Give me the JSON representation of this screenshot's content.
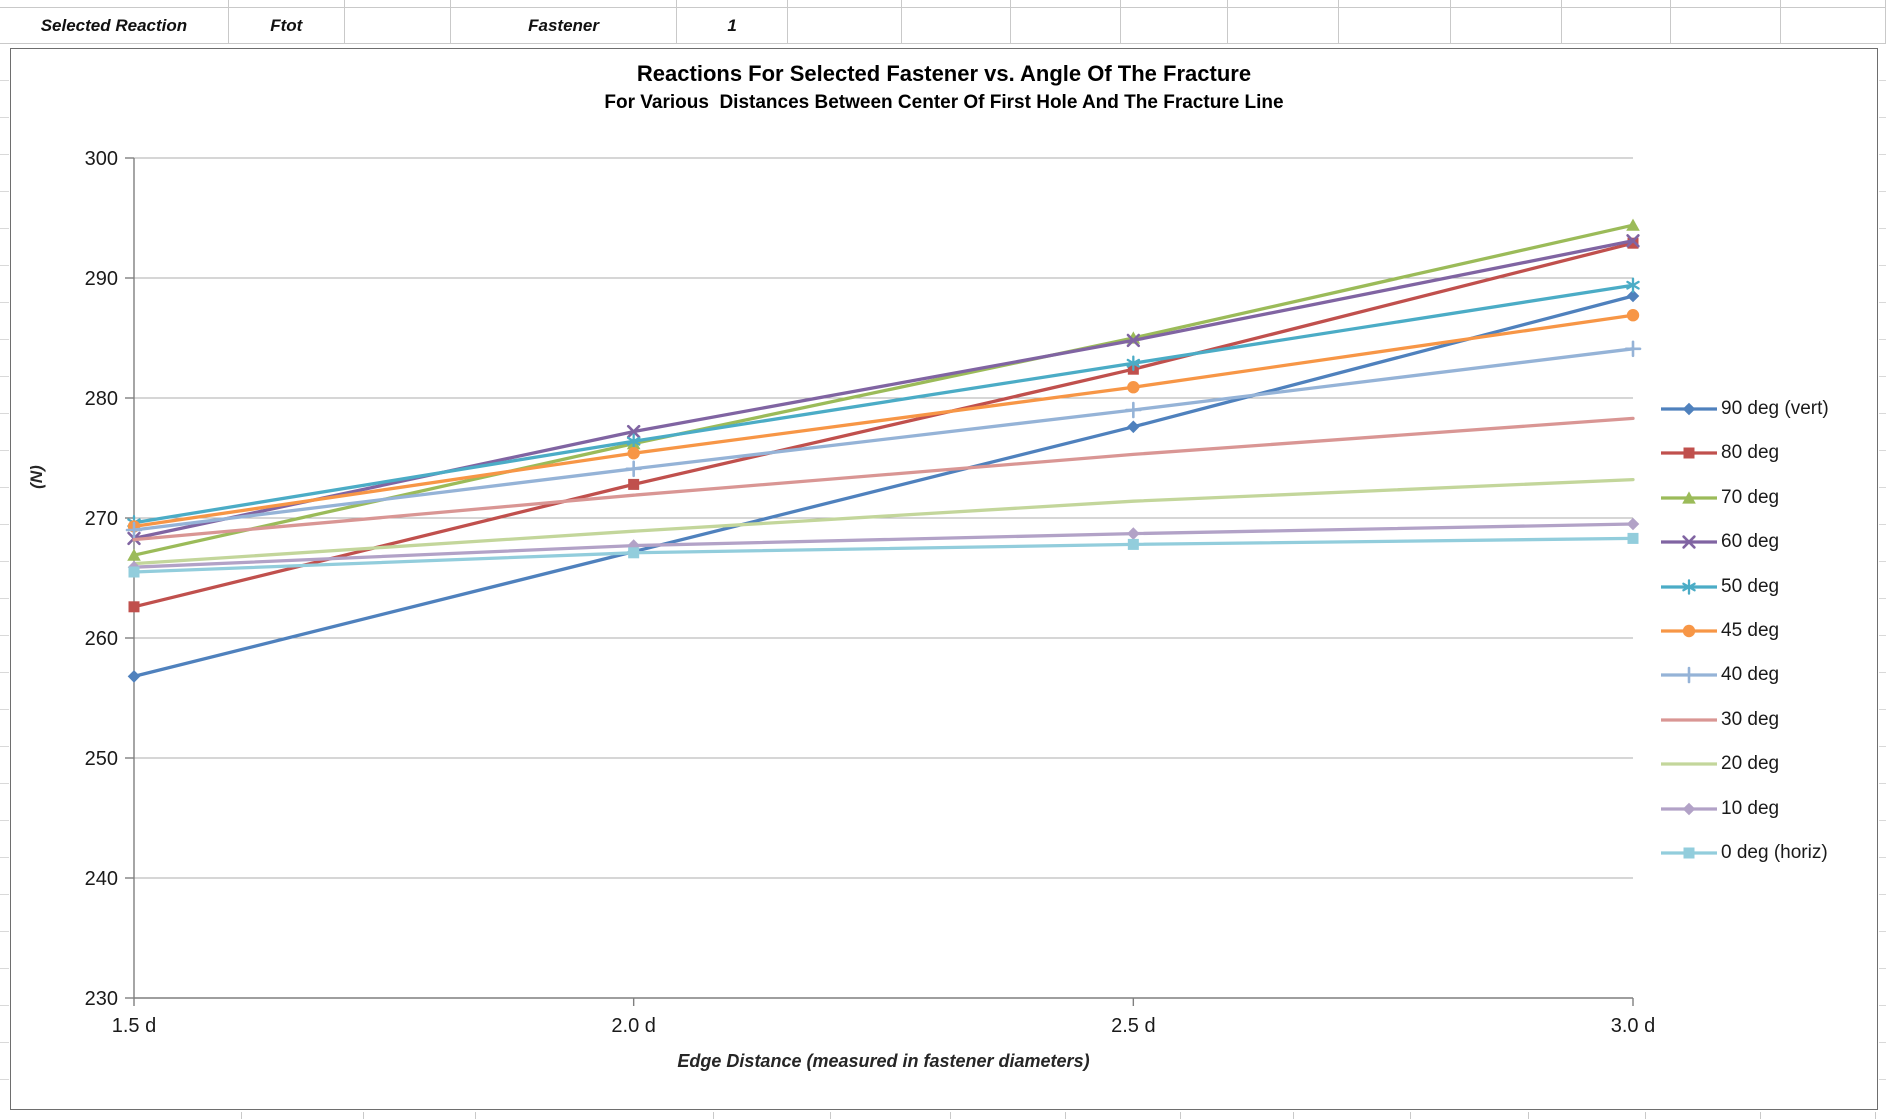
{
  "spreadsheet": {
    "header_cells": [
      "Selected Reaction",
      "Ftot",
      "",
      "Fastener",
      "1",
      "",
      "",
      "",
      "",
      "",
      "",
      "",
      "",
      "",
      ""
    ]
  },
  "chart_data": {
    "type": "line",
    "title": "Reactions For Selected Fastener vs. Angle Of The Fracture",
    "subtitle": "For Various  Distances Between Center Of First Hole And The Fracture Line",
    "xlabel": "Edge Distance (measured in fastener diameters)",
    "ylabel": "(N)",
    "x": [
      1.5,
      2.0,
      2.5,
      3.0
    ],
    "x_tick_labels": [
      "1.5 d",
      "2.0 d",
      "2.5 d",
      "3.0 d"
    ],
    "ylim": [
      230,
      300
    ],
    "ytick_step": 10,
    "y_tick_labels": [
      "230",
      "240",
      "250",
      "260",
      "270",
      "280",
      "290",
      "300"
    ],
    "grid": true,
    "legend_position": "right",
    "series": [
      {
        "name": "90 deg (vert)",
        "color": "#4F81BD",
        "marker": "diamond",
        "values": [
          256.8,
          267.2,
          277.6,
          288.5
        ]
      },
      {
        "name": "80 deg",
        "color": "#C0504D",
        "marker": "square",
        "values": [
          262.6,
          272.8,
          282.4,
          292.9
        ]
      },
      {
        "name": "70 deg",
        "color": "#9BBB59",
        "marker": "triangle",
        "values": [
          266.9,
          276.2,
          285.0,
          294.4
        ]
      },
      {
        "name": "60 deg",
        "color": "#8064A2",
        "marker": "x",
        "values": [
          268.3,
          277.2,
          284.8,
          293.1
        ]
      },
      {
        "name": "50 deg",
        "color": "#4BACC6",
        "marker": "asterisk",
        "values": [
          269.6,
          276.4,
          282.9,
          289.4
        ]
      },
      {
        "name": "45 deg",
        "color": "#F79646",
        "marker": "circle",
        "values": [
          269.3,
          275.4,
          280.9,
          286.9
        ]
      },
      {
        "name": "40 deg",
        "color": "#95B3D7",
        "marker": "plus",
        "values": [
          269.0,
          274.1,
          279.0,
          284.1
        ]
      },
      {
        "name": "30 deg",
        "color": "#D99694",
        "marker": "none",
        "values": [
          268.2,
          271.9,
          275.3,
          278.3
        ]
      },
      {
        "name": "20 deg",
        "color": "#C3D69B",
        "marker": "none",
        "values": [
          266.2,
          268.9,
          271.4,
          273.2
        ]
      },
      {
        "name": "10 deg",
        "color": "#B2A2C7",
        "marker": "diamond",
        "values": [
          265.9,
          267.7,
          268.7,
          269.5
        ]
      },
      {
        "name": "0 deg (horiz)",
        "color": "#92CDDC",
        "marker": "square",
        "values": [
          265.5,
          267.1,
          267.8,
          268.3
        ]
      }
    ]
  }
}
